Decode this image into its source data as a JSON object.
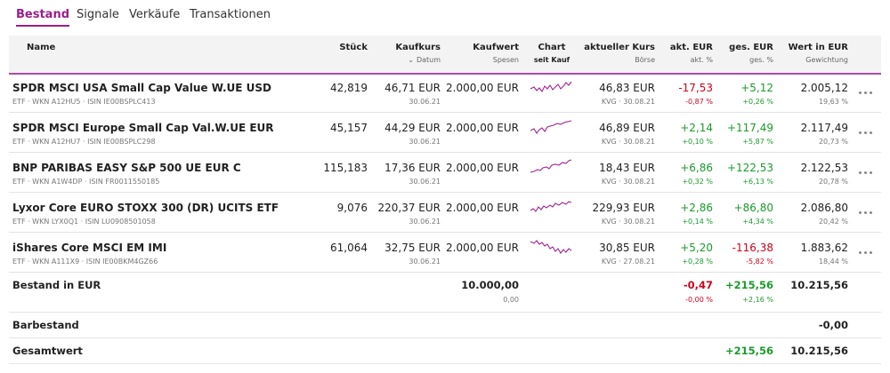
{
  "tabs": [
    "Bestand",
    "Signale",
    "Verkäufe",
    "Transaktionen"
  ],
  "header": {
    "name": "Name",
    "quantity": "Stück",
    "buy_price": "Kaufkurs",
    "buy_date": "Datum",
    "buy_value": "Kaufwert",
    "fees": "Spesen",
    "chart": "Chart",
    "chart_sub": "seit Kauf",
    "price": "aktueller Kurs",
    "exchange": "Börse",
    "change_abs": "akt. EUR",
    "change_pct": "akt. %",
    "total_abs": "ges. EUR",
    "total_pct": "ges. %",
    "value": "Wert in EUR",
    "weight": "Gewichtung"
  },
  "rows": [
    {
      "name": "SPDR MSCI USA Small Cap Value W.UE USD",
      "details": "ETF · WKN A12HU5 · ISIN IE00BSPLC413",
      "quantity": "42,819",
      "buy_price": "46,71 EUR",
      "buy_date": "30.06.21",
      "buy_value": "2.000,00 EUR",
      "price": "46,83 EUR",
      "exchange": "KVG · 30.08.21",
      "change_abs": "-17,53",
      "change_pct": "-0,87 %",
      "total_abs": "+5,12",
      "total_pct": "+0,26 %",
      "value": "2.005,12",
      "weight": "19,63 %"
    },
    {
      "name": "SPDR MSCI Europe Small Cap Val.W.UE EUR",
      "details": "ETF · WKN A12HU7 · ISIN IE00BSPLC298",
      "quantity": "45,157",
      "buy_price": "44,29 EUR",
      "buy_date": "30.06.21",
      "buy_value": "2.000,00 EUR",
      "price": "46,89 EUR",
      "exchange": "KVG · 30.08.21",
      "change_abs": "+2,14",
      "change_pct": "+0,10 %",
      "total_abs": "+117,49",
      "total_pct": "+5,87 %",
      "value": "2.117,49",
      "weight": "20,73 %"
    },
    {
      "name": "BNP PARIBAS EASY S&P 500 UE EUR C",
      "details": "ETF · WKN A1W4DP · ISIN FR0011550185",
      "quantity": "115,183",
      "buy_price": "17,36 EUR",
      "buy_date": "30.06.21",
      "buy_value": "2.000,00 EUR",
      "price": "18,43 EUR",
      "exchange": "KVG · 30.08.21",
      "change_abs": "+6,86",
      "change_pct": "+0,32 %",
      "total_abs": "+122,53",
      "total_pct": "+6,13 %",
      "value": "2.122,53",
      "weight": "20,78 %"
    },
    {
      "name": "Lyxor Core EURO STOXX 300 (DR) UCITS ETF",
      "details": "ETF · WKN LYX0Q1 · ISIN LU0908501058",
      "quantity": "9,076",
      "buy_price": "220,37 EUR",
      "buy_date": "30.06.21",
      "buy_value": "2.000,00 EUR",
      "price": "229,93 EUR",
      "exchange": "KVG · 30.08.21",
      "change_abs": "+2,86",
      "change_pct": "+0,14 %",
      "total_abs": "+86,80",
      "total_pct": "+4,34 %",
      "value": "2.086,80",
      "weight": "20,42 %"
    },
    {
      "name": "iShares Core MSCI EM IMI",
      "details": "ETF · WKN A111X9 · ISIN IE00BKM4GZ66",
      "quantity": "61,064",
      "buy_price": "32,75 EUR",
      "buy_date": "30.06.21",
      "buy_value": "2.000,00 EUR",
      "price": "30,85 EUR",
      "exchange": "KVG · 27.08.21",
      "change_abs": "+5,20",
      "change_pct": "+0,28 %",
      "total_abs": "-116,38",
      "total_pct": "-5,82 %",
      "value": "1.883,62",
      "weight": "18,44 %"
    }
  ],
  "summary": {
    "label": "Bestand in EUR",
    "buy_value": "10.000,00",
    "fees": "0,00",
    "change_abs": "-0,47",
    "change_pct": "-0,00 %",
    "total_abs": "+215,56",
    "total_pct": "+2,16 %",
    "value": "10.215,56"
  },
  "cash": {
    "label": "Barbestand",
    "value": "-0,00"
  },
  "total": {
    "label": "Gesamtwert",
    "total_abs": "+215,56",
    "value": "10.215,56"
  }
}
